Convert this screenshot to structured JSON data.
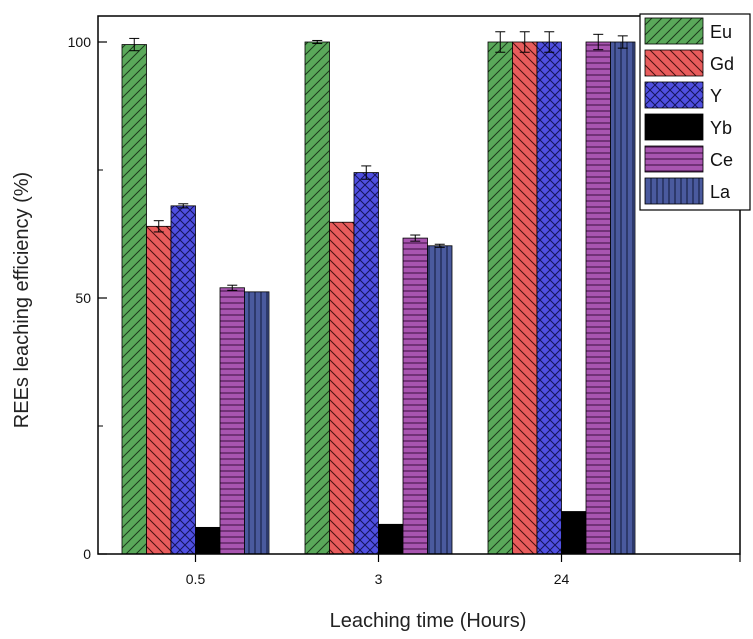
{
  "chart_data": {
    "type": "bar",
    "xlabel": "Leaching time (Hours)",
    "ylabel": "REEs leaching efficiency (%)",
    "categories": [
      "0.5",
      "3",
      "24"
    ],
    "y_ticks": [
      "0",
      "50",
      "100"
    ],
    "ylim": [
      0,
      105
    ],
    "legend_placement": "top-right",
    "series": [
      {
        "name": "Eu",
        "color": "#5aa85a",
        "pattern": "diag-up",
        "values": [
          99.5,
          100,
          100
        ],
        "errors": [
          1.2,
          0.3,
          2.0
        ]
      },
      {
        "name": "Gd",
        "color": "#e85c5c",
        "pattern": "diag-down",
        "values": [
          64,
          64.8,
          100
        ],
        "errors": [
          1.1,
          0,
          2.0
        ]
      },
      {
        "name": "Y",
        "color": "#4f4fe0",
        "pattern": "crosshatch",
        "values": [
          68,
          74.5,
          100
        ],
        "errors": [
          0.4,
          1.3,
          2.0
        ]
      },
      {
        "name": "Yb",
        "color": "#000000",
        "pattern": "solid",
        "values": [
          5.2,
          5.8,
          8.3
        ],
        "errors": [
          0,
          0,
          0
        ]
      },
      {
        "name": "Ce",
        "color": "#a855b0",
        "pattern": "horizontal",
        "values": [
          52,
          61.7,
          100
        ],
        "errors": [
          0.5,
          0.6,
          1.5
        ]
      },
      {
        "name": "La",
        "color": "#4a5a9e",
        "pattern": "vertical",
        "values": [
          51.2,
          60.2,
          100
        ],
        "errors": [
          0,
          0.3,
          1.2
        ]
      }
    ]
  }
}
